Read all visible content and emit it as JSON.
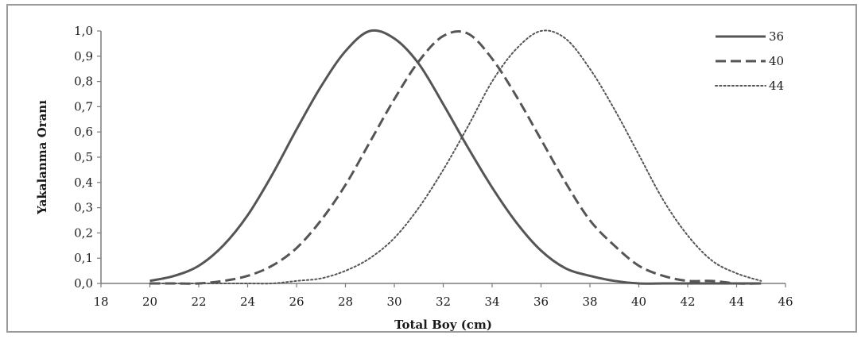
{
  "chart_data": {
    "type": "line",
    "xlabel": "Total Boy (cm)",
    "ylabel": "Yakalanma Oranı",
    "xlim": [
      18,
      46
    ],
    "ylim": [
      0,
      1
    ],
    "x_ticks": [
      "18",
      "20",
      "22",
      "24",
      "26",
      "28",
      "30",
      "32",
      "34",
      "36",
      "38",
      "40",
      "42",
      "44",
      "46"
    ],
    "y_ticks": [
      "0,0",
      "0,1",
      "0,2",
      "0,3",
      "0,4",
      "0,5",
      "0,6",
      "0,7",
      "0,8",
      "0,9",
      "1,0"
    ],
    "legend_position": "top-right",
    "x": [
      20,
      21,
      22,
      23,
      24,
      25,
      26,
      27,
      28,
      29,
      30,
      31,
      32,
      33,
      34,
      35,
      36,
      37,
      38,
      39,
      40,
      41,
      42,
      43,
      44,
      45
    ],
    "series": [
      {
        "name": "36",
        "style": "solid",
        "color": "#555555",
        "values": [
          0.01,
          0.03,
          0.07,
          0.15,
          0.27,
          0.43,
          0.61,
          0.78,
          0.92,
          1.0,
          0.97,
          0.87,
          0.71,
          0.54,
          0.38,
          0.24,
          0.13,
          0.06,
          0.03,
          0.01,
          0.0,
          0.0,
          0.0,
          0.0,
          0.0,
          0.0
        ]
      },
      {
        "name": "40",
        "style": "dashed",
        "color": "#555555",
        "values": [
          0.0,
          0.0,
          0.0,
          0.01,
          0.03,
          0.07,
          0.14,
          0.25,
          0.39,
          0.56,
          0.73,
          0.88,
          0.98,
          0.99,
          0.89,
          0.74,
          0.57,
          0.4,
          0.25,
          0.15,
          0.07,
          0.03,
          0.01,
          0.01,
          0.0,
          0.0
        ]
      },
      {
        "name": "44",
        "style": "dotted",
        "color": "#555555",
        "values": [
          0.0,
          0.0,
          0.0,
          0.0,
          0.0,
          0.0,
          0.01,
          0.02,
          0.05,
          0.1,
          0.18,
          0.3,
          0.45,
          0.62,
          0.8,
          0.93,
          1.0,
          0.97,
          0.85,
          0.69,
          0.51,
          0.33,
          0.19,
          0.09,
          0.04,
          0.01
        ]
      }
    ]
  }
}
